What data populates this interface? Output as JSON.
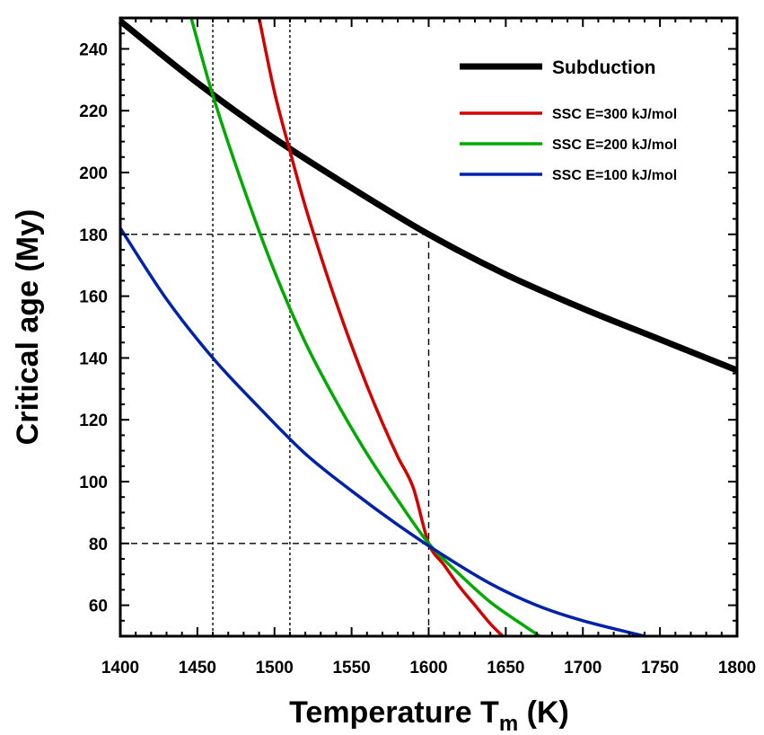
{
  "chart_data": {
    "type": "line",
    "xlabel_main": "Temperature T",
    "xlabel_sub": "m",
    "xlabel_unit": " (K)",
    "ylabel": "Critical age (My)",
    "xlim": [
      1400,
      1800
    ],
    "ylim": [
      50,
      250
    ],
    "x_ticks": [
      1400,
      1450,
      1500,
      1550,
      1600,
      1650,
      1700,
      1750,
      1800
    ],
    "y_ticks": [
      60,
      80,
      100,
      120,
      140,
      160,
      180,
      200,
      220,
      240
    ],
    "x_tick_labels": [
      "1400",
      "1450",
      "1500",
      "1550",
      "1600",
      "1650",
      "1700",
      "1750",
      "1800"
    ],
    "y_tick_labels": [
      "60",
      "80",
      "100",
      "120",
      "140",
      "160",
      "180",
      "200",
      "220",
      "240"
    ],
    "legend_position": "top-right",
    "grid": false,
    "series": [
      {
        "name": "Subduction",
        "color": "#000000",
        "style": "thick",
        "x": [
          1400,
          1450,
          1500,
          1550,
          1600,
          1650,
          1700,
          1750,
          1800
        ],
        "y": [
          249,
          229,
          211,
          195,
          180,
          167,
          156,
          146,
          136
        ]
      },
      {
        "name": "SSC E=300 kJ/mol",
        "color": "#d40000",
        "style": "normal",
        "x": [
          1490,
          1500,
          1510,
          1520,
          1530,
          1540,
          1550,
          1560,
          1570,
          1580,
          1590,
          1600,
          1610,
          1620,
          1630,
          1640,
          1648
        ],
        "y": [
          250,
          226,
          207,
          189,
          173,
          158,
          144,
          131,
          119,
          108,
          98,
          80,
          73,
          66,
          60,
          54,
          50
        ]
      },
      {
        "name": "SSC E=200 kJ/mol",
        "color": "#00aa00",
        "style": "normal",
        "x": [
          1446,
          1460,
          1480,
          1500,
          1520,
          1540,
          1560,
          1580,
          1600,
          1620,
          1640,
          1660,
          1672
        ],
        "y": [
          250,
          225,
          195,
          168,
          145,
          126,
          109,
          94,
          80,
          70,
          61,
          54,
          50
        ]
      },
      {
        "name": "SSC E=100 kJ/mol",
        "color": "#0022aa",
        "style": "normal",
        "x": [
          1400,
          1430,
          1460,
          1490,
          1520,
          1550,
          1580,
          1610,
          1640,
          1670,
          1700,
          1740
        ],
        "y": [
          182,
          159,
          140,
          124,
          109,
          97,
          86,
          76,
          67,
          60,
          55,
          50
        ]
      }
    ],
    "reference_lines": {
      "dashed_horizontal": [
        {
          "y": 180,
          "x_from": 1400,
          "x_to": 1600
        },
        {
          "y": 80,
          "x_from": 1400,
          "x_to": 1600
        }
      ],
      "dashed_vertical": [
        {
          "x": 1600,
          "y_from": 50,
          "y_to": 180
        }
      ],
      "dotted_vertical": [
        {
          "x": 1460,
          "y_from": 50,
          "y_to": 250
        },
        {
          "x": 1510,
          "y_from": 50,
          "y_to": 250
        }
      ]
    }
  }
}
